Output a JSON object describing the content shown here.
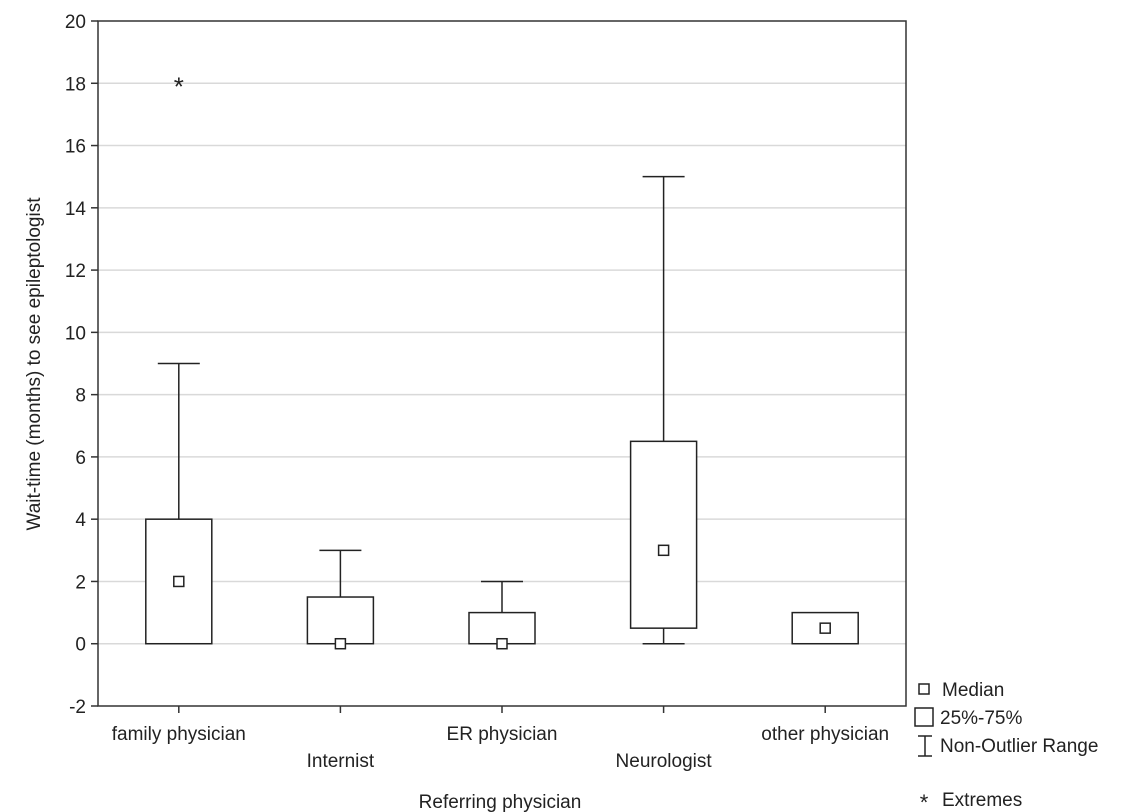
{
  "chart_data": {
    "type": "boxplot",
    "title": "",
    "xlabel": "Referring physician",
    "ylabel": "Wait-time (months) to see epileptologist",
    "ylim": [
      -2,
      20
    ],
    "yticks": [
      -2,
      0,
      2,
      4,
      6,
      8,
      10,
      12,
      14,
      16,
      18,
      20
    ],
    "grid": true,
    "legend_position": "bottom-right",
    "categories": [
      "family physician",
      "Internist",
      "ER physician",
      "Neurologist",
      "other physician"
    ],
    "boxes": [
      {
        "category": "family physician",
        "median": 2,
        "q1": 0,
        "q3": 4,
        "whisker_low": 0,
        "whisker_high": 9,
        "extremes": [
          18
        ]
      },
      {
        "category": "Internist",
        "median": 0,
        "q1": 0,
        "q3": 1.5,
        "whisker_low": 0,
        "whisker_high": 3,
        "extremes": []
      },
      {
        "category": "ER physician",
        "median": 0,
        "q1": 0,
        "q3": 1,
        "whisker_low": 0,
        "whisker_high": 2,
        "extremes": []
      },
      {
        "category": "Neurologist",
        "median": 3,
        "q1": 0.5,
        "q3": 6.5,
        "whisker_low": 0,
        "whisker_high": 15,
        "extremes": []
      },
      {
        "category": "other physician",
        "median": 0.5,
        "q1": 0,
        "q3": 1,
        "whisker_low": 0,
        "whisker_high": 1,
        "extremes": []
      }
    ],
    "legend": {
      "median": "Median",
      "box": "25%-75%",
      "range": "Non-Outlier Range",
      "extremes": "Extremes"
    }
  }
}
